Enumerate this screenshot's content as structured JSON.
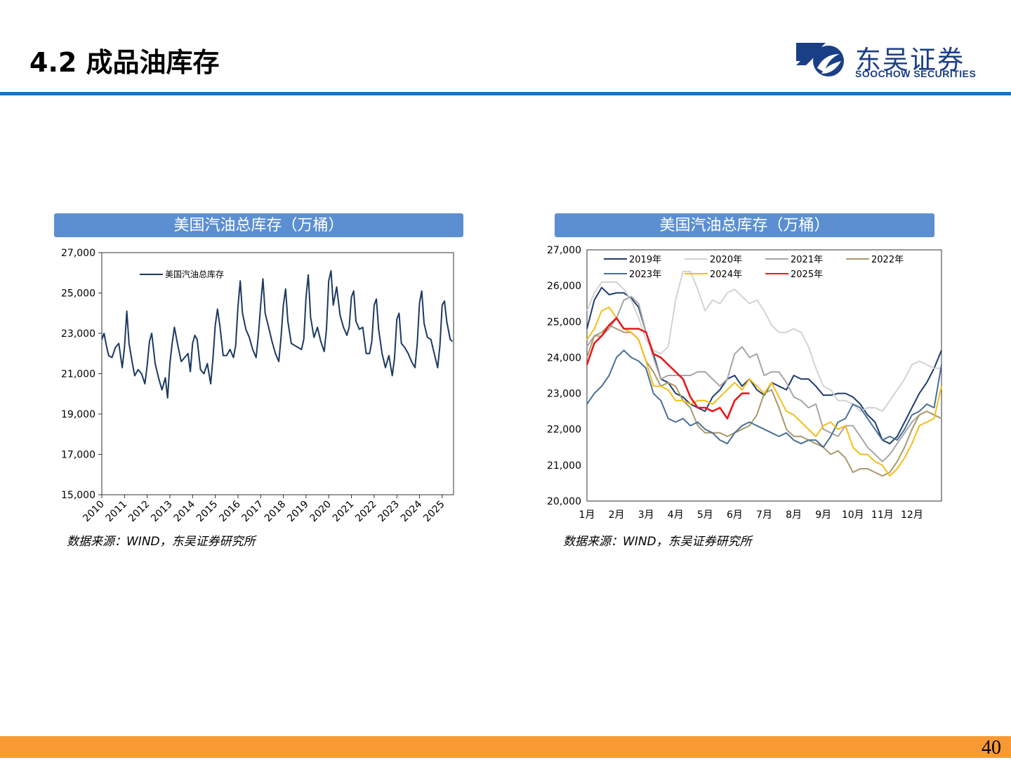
{
  "header": {
    "title": "4.2 成品油库存"
  },
  "logo": {
    "name_cn": "东吴证券",
    "name_en": "SOOCHOW SECURITIES"
  },
  "page_number": "40",
  "colors": {
    "accent": "#1f6fb8",
    "banner": "#5b8fd2",
    "footer": "#f79a34",
    "brand": "#1a3f87"
  },
  "charts": [
    {
      "banner": "美国汽油总库存（万桶）",
      "source": "数据来源：WIND，东吴证券研究所"
    },
    {
      "banner": "美国汽油总库存（万桶）",
      "source": "数据来源：WIND，东吴证券研究所"
    }
  ],
  "chart_data": [
    {
      "type": "line",
      "ylim": [
        15000,
        27000
      ],
      "yticks": [
        "15,000",
        "17,000",
        "19,000",
        "21,000",
        "23,000",
        "25,000",
        "27,000"
      ],
      "xticks": [
        "2010",
        "2011",
        "2012",
        "2013",
        "2014",
        "2015",
        "2016",
        "2017",
        "2018",
        "2019",
        "2020",
        "2021",
        "2022",
        "2023",
        "2024",
        "2025"
      ],
      "xlim": [
        2010,
        2025.5
      ],
      "series": [
        {
          "name": "美国汽油总库存",
          "color": "#1c3a60",
          "x": [
            2010.0,
            2010.1,
            2010.2,
            2010.3,
            2010.45,
            2010.6,
            2010.75,
            2010.9,
            2011.0,
            2011.1,
            2011.2,
            2011.35,
            2011.45,
            2011.6,
            2011.75,
            2011.9,
            2012.0,
            2012.1,
            2012.2,
            2012.35,
            2012.5,
            2012.65,
            2012.8,
            2012.9,
            2013.0,
            2013.1,
            2013.2,
            2013.35,
            2013.5,
            2013.65,
            2013.8,
            2013.9,
            2014.0,
            2014.1,
            2014.2,
            2014.35,
            2014.5,
            2014.65,
            2014.8,
            2014.9,
            2015.0,
            2015.1,
            2015.2,
            2015.35,
            2015.5,
            2015.65,
            2015.8,
            2015.9,
            2016.0,
            2016.1,
            2016.2,
            2016.35,
            2016.5,
            2016.65,
            2016.8,
            2016.9,
            2017.0,
            2017.1,
            2017.2,
            2017.35,
            2017.5,
            2017.65,
            2017.8,
            2017.9,
            2018.0,
            2018.1,
            2018.2,
            2018.35,
            2018.5,
            2018.65,
            2018.8,
            2018.9,
            2019.0,
            2019.1,
            2019.2,
            2019.35,
            2019.5,
            2019.65,
            2019.8,
            2019.9,
            2020.0,
            2020.1,
            2020.2,
            2020.35,
            2020.5,
            2020.65,
            2020.8,
            2020.9,
            2021.0,
            2021.1,
            2021.2,
            2021.35,
            2021.5,
            2021.65,
            2021.8,
            2021.9,
            2022.0,
            2022.1,
            2022.2,
            2022.35,
            2022.5,
            2022.65,
            2022.8,
            2022.9,
            2023.0,
            2023.1,
            2023.2,
            2023.35,
            2023.5,
            2023.65,
            2023.8,
            2023.9,
            2024.0,
            2024.1,
            2024.2,
            2024.35,
            2024.5,
            2024.65,
            2024.8,
            2024.9,
            2025.0,
            2025.1,
            2025.2,
            2025.35,
            2025.45
          ],
          "y": [
            22700,
            23000,
            22400,
            21900,
            21800,
            22300,
            22500,
            21300,
            22300,
            24100,
            22500,
            21500,
            20900,
            21200,
            21000,
            20500,
            21400,
            22600,
            23000,
            21500,
            20800,
            20200,
            20800,
            19800,
            21500,
            22500,
            23300,
            22400,
            21600,
            21800,
            22000,
            21100,
            22500,
            22900,
            22700,
            21200,
            21000,
            21500,
            20500,
            21800,
            23400,
            24200,
            23400,
            21900,
            21900,
            22200,
            21800,
            22400,
            24300,
            25600,
            24000,
            23200,
            22800,
            22200,
            21800,
            22900,
            24400,
            25700,
            24000,
            23300,
            22600,
            22000,
            21600,
            22800,
            24400,
            25200,
            23600,
            22500,
            22400,
            22300,
            22200,
            22700,
            24800,
            25900,
            23800,
            22800,
            23300,
            22600,
            22100,
            23200,
            25600,
            26100,
            24400,
            25300,
            23900,
            23300,
            22900,
            23300,
            24800,
            25100,
            23600,
            23200,
            23300,
            22000,
            22000,
            22600,
            24400,
            24700,
            23200,
            22000,
            21300,
            21900,
            20900,
            21800,
            23700,
            24000,
            22500,
            22300,
            22000,
            21600,
            21300,
            22500,
            24500,
            25100,
            23500,
            22800,
            22700,
            22000,
            21300,
            22400,
            24400,
            24600,
            23600,
            22700,
            22600
          ]
        }
      ]
    },
    {
      "type": "line",
      "ylim": [
        20000,
        27000
      ],
      "yticks": [
        "20,000",
        "21,000",
        "22,000",
        "23,000",
        "24,000",
        "25,000",
        "26,000",
        "27,000"
      ],
      "xticks": [
        "1月",
        "2月",
        "3月",
        "4月",
        "5月",
        "6月",
        "7月",
        "8月",
        "9月",
        "10月",
        "11月",
        "12月"
      ],
      "xlim": [
        1,
        13
      ],
      "legend": "top-left",
      "series": [
        {
          "name": "2019年",
          "color": "#1f3d6b",
          "x": [
            1,
            1.25,
            1.5,
            1.75,
            2,
            2.25,
            2.5,
            2.75,
            3,
            3.25,
            3.5,
            3.75,
            4,
            4.25,
            4.5,
            4.75,
            5,
            5.25,
            5.5,
            5.75,
            6,
            6.25,
            6.5,
            6.75,
            7,
            7.25,
            7.5,
            7.75,
            8,
            8.25,
            8.5,
            8.75,
            9,
            9.25,
            9.5,
            9.75,
            10,
            10.25,
            10.5,
            10.75,
            11,
            11.25,
            11.5,
            11.75,
            12,
            12.25,
            12.5,
            12.75,
            13
          ],
          "y": [
            24800,
            25600,
            25950,
            25750,
            25800,
            25800,
            25650,
            25400,
            24700,
            24100,
            23400,
            23300,
            23000,
            22900,
            22700,
            22600,
            22500,
            22900,
            23100,
            23400,
            23500,
            23200,
            23400,
            23100,
            22950,
            23300,
            23200,
            23100,
            23500,
            23400,
            23400,
            23200,
            22950,
            22950,
            23000,
            23000,
            22900,
            22700,
            22400,
            22200,
            21700,
            21600,
            21800,
            22200,
            22600,
            23000,
            23300,
            23700,
            24200
          ]
        },
        {
          "name": "2020年",
          "color": "#d3d3d3",
          "x": [
            1,
            1.25,
            1.5,
            1.75,
            2,
            2.25,
            2.5,
            2.75,
            3,
            3.25,
            3.5,
            3.75,
            4,
            4.25,
            4.5,
            4.75,
            5,
            5.25,
            5.5,
            5.75,
            6,
            6.25,
            6.5,
            6.75,
            7,
            7.25,
            7.5,
            7.75,
            8,
            8.25,
            8.5,
            8.75,
            9,
            9.25,
            9.5,
            9.75,
            10,
            10.25,
            10.5,
            10.75,
            11,
            11.25,
            11.5,
            11.75,
            12,
            12.25,
            12.5,
            12.75,
            13
          ],
          "y": [
            25300,
            25800,
            26100,
            26100,
            26100,
            25900,
            25600,
            25100,
            24500,
            24200,
            24100,
            24300,
            25600,
            26400,
            26400,
            25900,
            25300,
            25600,
            25500,
            25800,
            25900,
            25700,
            25500,
            25600,
            25300,
            24900,
            24700,
            24700,
            24800,
            24700,
            24300,
            23700,
            23200,
            23100,
            22800,
            22800,
            22700,
            22500,
            22600,
            22600,
            22500,
            22800,
            23100,
            23400,
            23800,
            23900,
            23800,
            23700,
            23700
          ]
        },
        {
          "name": "2021年",
          "color": "#a6a6a6",
          "x": [
            1,
            1.25,
            1.5,
            1.75,
            2,
            2.25,
            2.5,
            2.75,
            3,
            3.25,
            3.5,
            3.75,
            4,
            4.25,
            4.5,
            4.75,
            5,
            5.25,
            5.5,
            5.75,
            6,
            6.25,
            6.5,
            6.75,
            7,
            7.25,
            7.5,
            7.75,
            8,
            8.25,
            8.5,
            8.75,
            9,
            9.25,
            9.5,
            9.75,
            10,
            10.25,
            10.5,
            10.75,
            11,
            11.25,
            11.5,
            11.75,
            12,
            12.25,
            12.5,
            12.75,
            13
          ],
          "y": [
            24300,
            24600,
            24600,
            24800,
            25100,
            25600,
            25700,
            25500,
            24700,
            24000,
            23400,
            23500,
            23500,
            23500,
            23500,
            23600,
            23600,
            23400,
            23200,
            23400,
            24100,
            24300,
            24000,
            24100,
            23500,
            23600,
            23600,
            23300,
            22900,
            22800,
            22600,
            22700,
            22000,
            21900,
            21800,
            22100,
            22100,
            21800,
            21500,
            21300,
            21100,
            21300,
            21600,
            21900,
            22200,
            22400,
            22500,
            22400,
            22300
          ]
        },
        {
          "name": "2022年",
          "color": "#a89a6a",
          "x": [
            1,
            1.25,
            1.5,
            1.75,
            2,
            2.25,
            2.5,
            2.75,
            3,
            3.25,
            3.5,
            3.75,
            4,
            4.25,
            4.5,
            4.75,
            5,
            5.25,
            5.5,
            5.75,
            6,
            6.25,
            6.5,
            6.75,
            7,
            7.25,
            7.5,
            7.75,
            8,
            8.25,
            8.5,
            8.75,
            9,
            9.25,
            9.5,
            9.75,
            10,
            10.25,
            10.5,
            10.75,
            11,
            11.25,
            11.5,
            11.75,
            12,
            12.25,
            12.5,
            12.75,
            13
          ],
          "y": [
            24000,
            24600,
            24700,
            24900,
            24800,
            24700,
            24700,
            24500,
            23900,
            23600,
            23200,
            23300,
            23200,
            22800,
            22600,
            22100,
            21900,
            21900,
            21900,
            21800,
            21900,
            22000,
            22100,
            22400,
            23000,
            23100,
            22600,
            22000,
            21800,
            21800,
            21700,
            21600,
            21500,
            21300,
            21400,
            21200,
            20800,
            20900,
            20900,
            20800,
            20700,
            20800,
            21100,
            21500,
            22000,
            22400,
            22500,
            22400,
            22300
          ]
        },
        {
          "name": "2023年",
          "color": "#4a6f97",
          "x": [
            1,
            1.25,
            1.5,
            1.75,
            2,
            2.25,
            2.5,
            2.75,
            3,
            3.25,
            3.5,
            3.75,
            4,
            4.25,
            4.5,
            4.75,
            5,
            5.25,
            5.5,
            5.75,
            6,
            6.25,
            6.5,
            6.75,
            7,
            7.25,
            7.5,
            7.75,
            8,
            8.25,
            8.5,
            8.75,
            9,
            9.25,
            9.5,
            9.75,
            10,
            10.25,
            10.5,
            10.75,
            11,
            11.25,
            11.5,
            11.75,
            12,
            12.25,
            12.5,
            12.75,
            13
          ],
          "y": [
            22700,
            23000,
            23200,
            23500,
            24000,
            24200,
            24000,
            23900,
            23700,
            23000,
            22800,
            22300,
            22200,
            22300,
            22100,
            22200,
            22000,
            21900,
            21700,
            21600,
            21900,
            22100,
            22200,
            22100,
            22000,
            21900,
            21800,
            21900,
            21700,
            21600,
            21700,
            21700,
            21500,
            21800,
            22200,
            22300,
            22700,
            22600,
            22300,
            22000,
            21700,
            21800,
            21700,
            22000,
            22400,
            22500,
            22700,
            22600,
            23800
          ]
        },
        {
          "name": "2024年",
          "color": "#f5bd16",
          "x": [
            1,
            1.25,
            1.5,
            1.75,
            2,
            2.25,
            2.5,
            2.75,
            3,
            3.25,
            3.5,
            3.75,
            4,
            4.25,
            4.5,
            4.75,
            5,
            5.25,
            5.5,
            5.75,
            6,
            6.25,
            6.5,
            6.75,
            7,
            7.25,
            7.5,
            7.75,
            8,
            8.25,
            8.5,
            8.75,
            9,
            9.25,
            9.5,
            9.75,
            10,
            10.25,
            10.5,
            10.75,
            11,
            11.25,
            11.5,
            11.75,
            12,
            12.25,
            12.5,
            12.75,
            13
          ],
          "y": [
            24500,
            24800,
            25300,
            25400,
            25100,
            24800,
            24700,
            24500,
            23900,
            23200,
            23200,
            23100,
            22800,
            22800,
            22700,
            22800,
            22800,
            22700,
            22900,
            23100,
            23300,
            23100,
            23400,
            23200,
            23000,
            23300,
            22900,
            22500,
            22400,
            22200,
            22000,
            21800,
            22100,
            22200,
            22000,
            22100,
            21500,
            21300,
            21300,
            21100,
            21000,
            20700,
            20900,
            21200,
            21600,
            22100,
            22200,
            22300,
            23200
          ]
        },
        {
          "name": "2025年",
          "color": "#e8191b",
          "x": [
            1,
            1.25,
            1.5,
            1.75,
            2,
            2.25,
            2.5,
            2.75,
            3,
            3.25,
            3.5,
            3.75,
            4,
            4.25,
            4.5,
            4.75,
            5,
            5.25,
            5.5,
            5.75,
            6,
            6.25,
            6.5
          ],
          "y": [
            23800,
            24400,
            24600,
            24900,
            25100,
            24800,
            24800,
            24800,
            24700,
            24100,
            24000,
            23800,
            23600,
            23400,
            22900,
            22600,
            22600,
            22500,
            22600,
            22300,
            22800,
            23000,
            23000
          ]
        }
      ]
    }
  ]
}
